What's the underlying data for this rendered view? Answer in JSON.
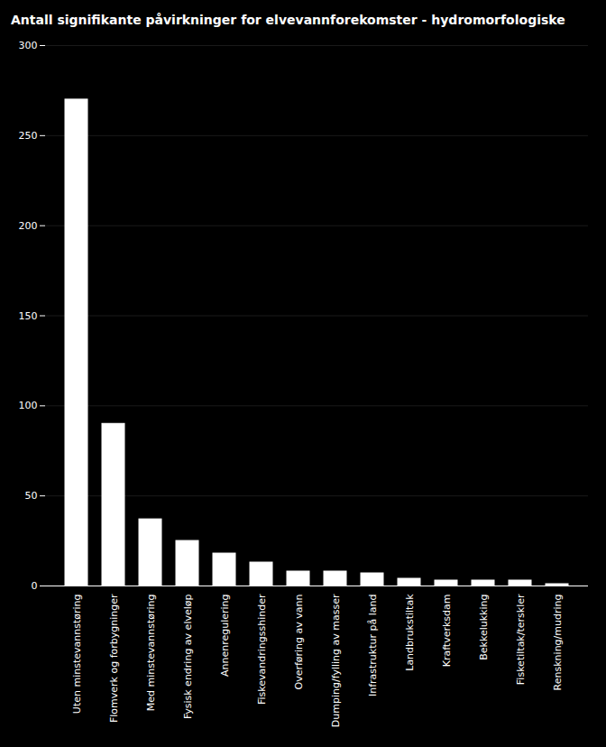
{
  "chart_data": {
    "type": "bar",
    "title": "Antall signifikante påvirkninger for elvevannforekomster - hydromorfologiske",
    "categories": [
      "Uten minstevannstøring",
      "Flomverk og forbygninger",
      "Med minstevannstøring",
      "Fysisk endring av elveløp",
      "Annenregulering",
      "Fiskevandringsshinder",
      "Overføring av vann",
      "Dumping/fylling av masser",
      "Infrastruktur på land",
      "Landbrukstiltak",
      "Kraftverksdam",
      "Bekkelukking",
      "Fisketiltak/terskler",
      "Renskning/mudring"
    ],
    "values": [
      270,
      90,
      37,
      25,
      18,
      13,
      8,
      8,
      7,
      4,
      3,
      3,
      3,
      1
    ],
    "color": "#ffffff",
    "ylim": [
      0,
      300
    ],
    "yticks": [
      0,
      50,
      100,
      150,
      200,
      250,
      300
    ],
    "grid": true
  }
}
